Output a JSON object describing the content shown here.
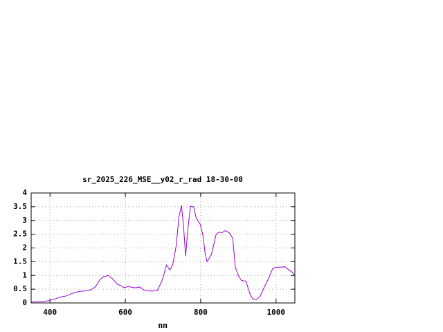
{
  "chart_data": {
    "type": "line",
    "title": "sr_2025_226_MSE__y02_r_rad 18-30-00",
    "xlabel": "nm",
    "x": [
      350,
      378,
      396,
      414,
      429,
      442,
      460,
      478,
      497,
      509,
      520,
      533,
      542,
      555,
      566,
      579,
      588,
      597,
      607,
      625,
      638,
      652,
      671,
      685,
      698,
      709,
      718,
      726,
      735,
      742,
      749,
      755,
      760,
      766,
      773,
      781,
      788,
      799,
      806,
      812,
      817,
      828,
      834,
      841,
      850,
      856,
      865,
      876,
      885,
      892,
      900,
      907,
      914,
      920,
      931,
      938,
      949,
      958,
      969,
      980,
      991,
      1001,
      1012,
      1023,
      1034,
      1043,
      1048
    ],
    "series": [
      {
        "color": "#9400d3",
        "values": [
          0.03,
          0.05,
          0.08,
          0.15,
          0.22,
          0.25,
          0.35,
          0.42,
          0.44,
          0.48,
          0.58,
          0.85,
          0.95,
          1.0,
          0.88,
          0.68,
          0.63,
          0.55,
          0.6,
          0.55,
          0.58,
          0.45,
          0.43,
          0.45,
          0.83,
          1.38,
          1.2,
          1.4,
          2.08,
          3.1,
          3.55,
          2.7,
          1.7,
          2.7,
          3.52,
          3.5,
          3.1,
          2.85,
          2.45,
          1.78,
          1.5,
          1.75,
          2.08,
          2.5,
          2.58,
          2.55,
          2.63,
          2.55,
          2.35,
          1.3,
          1.0,
          0.83,
          0.8,
          0.8,
          0.32,
          0.15,
          0.13,
          0.25,
          0.58,
          0.88,
          1.25,
          1.3,
          1.3,
          1.32,
          1.2,
          1.12,
          1.02
        ]
      }
    ],
    "xlim": [
      350,
      1050
    ],
    "xticks": [
      400,
      600,
      800,
      1000
    ],
    "ylim": [
      0,
      4
    ],
    "yticks": [
      0,
      0.5,
      1,
      1.5,
      2,
      2.5,
      3,
      3.5,
      4
    ],
    "grid": true
  }
}
